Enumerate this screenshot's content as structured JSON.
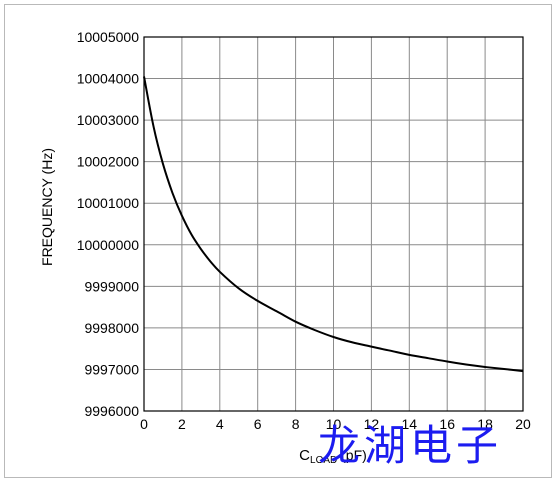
{
  "chart_data": {
    "type": "line",
    "title": "",
    "ylabel": "FREQUENCY (Hz)",
    "xlabel_main": "C",
    "xlabel_sub": "LOAD",
    "xlabel_unit": " (pF)",
    "xlim": [
      0,
      20
    ],
    "ylim": [
      9996000,
      10005000
    ],
    "xticks": [
      "0",
      "2",
      "4",
      "6",
      "8",
      "10",
      "12",
      "14",
      "16",
      "18",
      "20"
    ],
    "yticks": [
      "9996000",
      "9997000",
      "9998000",
      "9999000",
      "10000000",
      "10001000",
      "10002000",
      "10003000",
      "10004000",
      "10005000"
    ],
    "grid": true,
    "series": [
      {
        "color": "#000000",
        "x": [
          0,
          0.5,
          1,
          1.5,
          2,
          2.5,
          3,
          3.5,
          4,
          5,
          6,
          7,
          8,
          9,
          10,
          11,
          12,
          13,
          14,
          15,
          16,
          17,
          18,
          19,
          20
        ],
        "y": [
          10004050,
          10002850,
          10001950,
          10001250,
          10000700,
          10000250,
          9999900,
          9999600,
          9999350,
          9998950,
          9998650,
          9998400,
          9998150,
          9997950,
          9997780,
          9997650,
          9997550,
          9997450,
          9997350,
          9997270,
          9997190,
          9997120,
          9997060,
          9997010,
          9996960
        ]
      }
    ]
  },
  "watermark": "龙湖电子"
}
